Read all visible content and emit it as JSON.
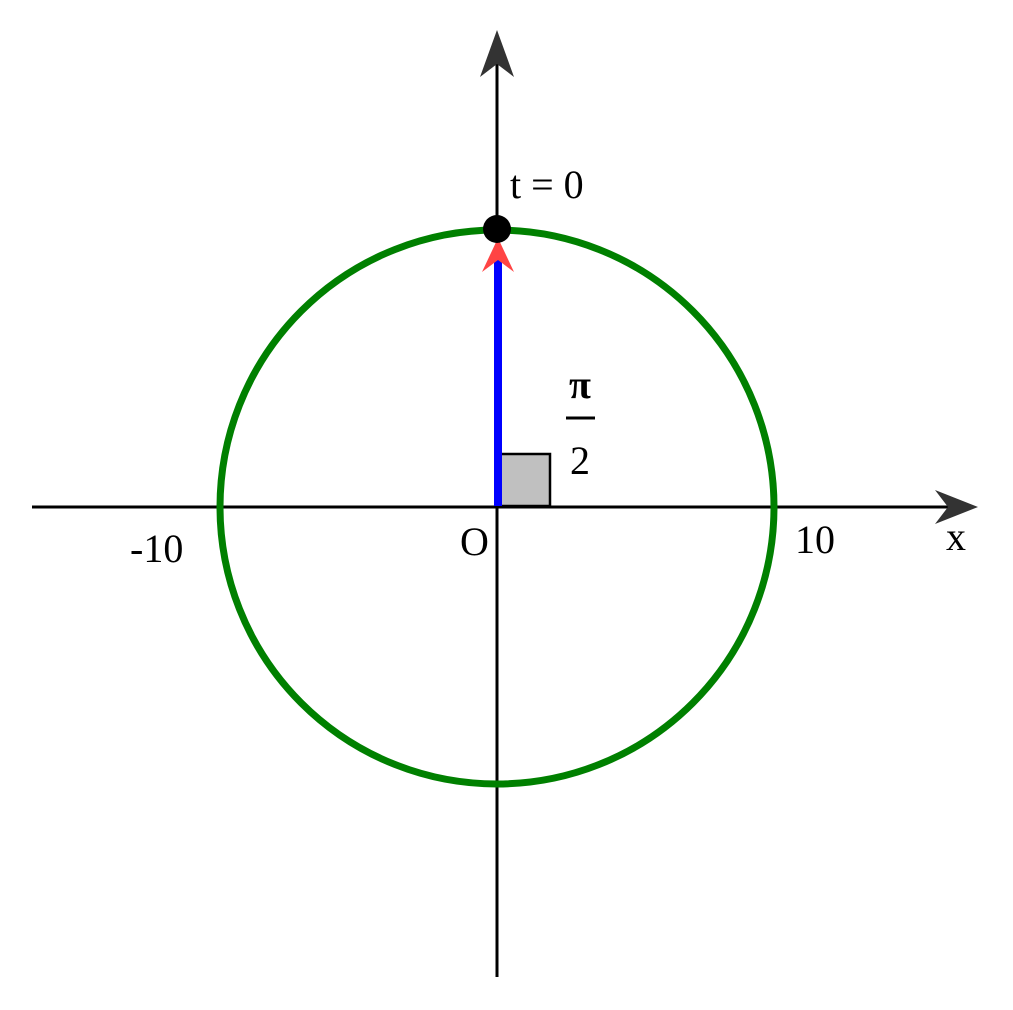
{
  "diagram": {
    "axis_x_label": "x",
    "origin_label": "O",
    "tick_neg": "-10",
    "tick_pos": "10",
    "point_label": "t = 0",
    "angle_numerator": "π",
    "angle_denominator": "2",
    "circle_radius": 10,
    "angle": "π/2",
    "colors": {
      "circle": "#008000",
      "vector": "#0000ff",
      "vector_head": "#ff4444",
      "axis": "#000000",
      "axis_arrow": "#333333",
      "right_angle_fill": "#c0c0c0",
      "point": "#000000"
    }
  }
}
